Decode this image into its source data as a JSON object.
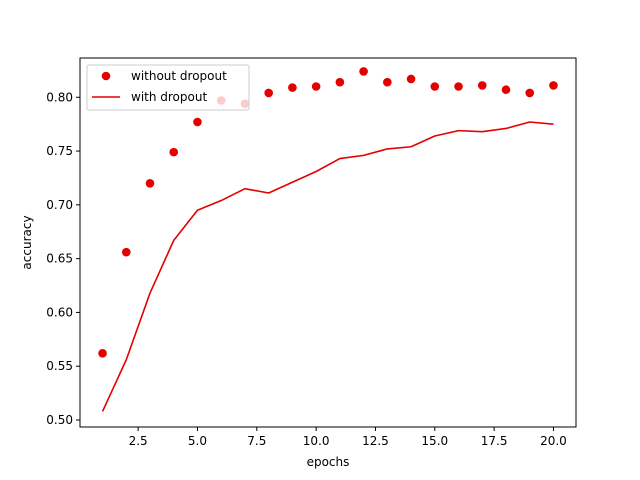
{
  "chart_data": {
    "type": "line",
    "xlabel": "epochs",
    "ylabel": "accuracy",
    "xlim": [
      0.05,
      20.95
    ],
    "ylim": [
      0.4935,
      0.8365
    ],
    "xticks": [
      2.5,
      5.0,
      7.5,
      10.0,
      12.5,
      15.0,
      17.5,
      20.0
    ],
    "xtick_labels": [
      "2.5",
      "5.0",
      "7.5",
      "10.0",
      "12.5",
      "15.0",
      "17.5",
      "20.0"
    ],
    "yticks": [
      0.5,
      0.55,
      0.6,
      0.65,
      0.7,
      0.75,
      0.8
    ],
    "ytick_labels": [
      "0.50",
      "0.55",
      "0.60",
      "0.65",
      "0.70",
      "0.75",
      "0.80"
    ],
    "grid": false,
    "legend_position": "top-left",
    "color": "#e50000",
    "x": [
      1,
      2,
      3,
      4,
      5,
      6,
      7,
      8,
      9,
      10,
      11,
      12,
      13,
      14,
      15,
      16,
      17,
      18,
      19,
      20
    ],
    "series": [
      {
        "name": "without dropout",
        "kind": "scatter",
        "values": [
          0.562,
          0.656,
          0.72,
          0.749,
          0.777,
          0.797,
          0.794,
          0.804,
          0.809,
          0.81,
          0.814,
          0.824,
          0.814,
          0.817,
          0.81,
          0.81,
          0.811,
          0.807,
          0.804,
          0.811
        ]
      },
      {
        "name": "with dropout",
        "kind": "line",
        "values": [
          0.508,
          0.556,
          0.618,
          0.667,
          0.695,
          0.704,
          0.715,
          0.711,
          0.721,
          0.731,
          0.743,
          0.746,
          0.752,
          0.754,
          0.764,
          0.769,
          0.768,
          0.771,
          0.777,
          0.775
        ]
      }
    ]
  }
}
